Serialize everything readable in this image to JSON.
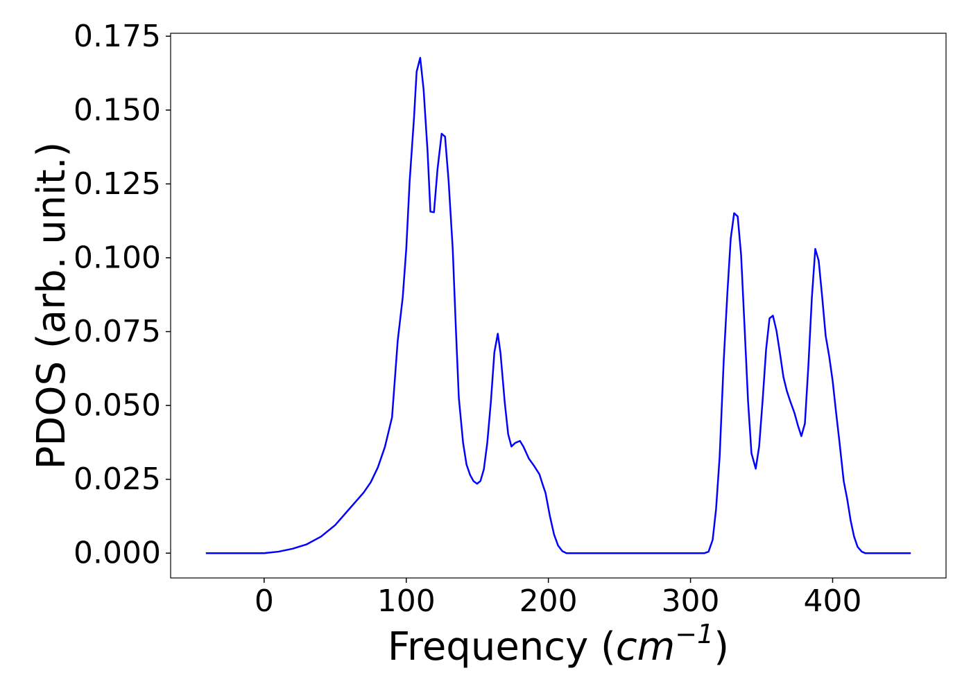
{
  "chart_data": {
    "type": "line",
    "ylabel": "PDOS (arb. unit.)",
    "xlabel": [
      "Frequency (",
      "cm",
      "−1",
      ")"
    ],
    "xlim": [
      -65.8,
      479.8
    ],
    "ylim": [
      -0.0084,
      0.176
    ],
    "xticks": [
      0,
      100,
      200,
      300,
      400
    ],
    "yticks": [
      {
        "value": 0,
        "label": "0.000"
      },
      {
        "value": 0.025,
        "label": "0.025"
      },
      {
        "value": 0.05,
        "label": "0.050"
      },
      {
        "value": 0.075,
        "label": "0.075"
      },
      {
        "value": 0.1,
        "label": "0.100"
      },
      {
        "value": 0.125,
        "label": "0.125"
      },
      {
        "value": 0.15,
        "label": "0.150"
      },
      {
        "value": 0.175,
        "label": "0.175"
      }
    ],
    "grid": false,
    "x": [
      -41,
      0,
      10,
      20,
      30,
      40,
      50,
      60,
      70,
      75,
      80,
      85,
      90,
      94,
      97.5,
      100,
      102.4,
      105.4,
      107.3,
      109.8,
      112.2,
      115,
      117,
      119.5,
      122,
      124.9,
      127.3,
      129.8,
      132.7,
      135,
      137,
      140,
      142.4,
      144.9,
      147.3,
      149.8,
      152.2,
      154.6,
      157,
      159.5,
      162,
      164.4,
      166.3,
      169.3,
      171.7,
      174,
      176.6,
      180,
      182.4,
      186.3,
      190,
      193.7,
      196,
      198,
      201,
      204,
      206.8,
      209.8,
      212.7,
      309.8,
      312.7,
      315.6,
      318,
      320.5,
      323.4,
      325.9,
      328.3,
      330.7,
      333.2,
      335.6,
      338,
      340.5,
      342.9,
      345.9,
      348.3,
      350.7,
      353.2,
      355.6,
      358,
      360.5,
      362.9,
      365.4,
      367.8,
      370.2,
      373.2,
      375.6,
      378,
      380.5,
      382.9,
      385.4,
      387.8,
      390.2,
      392.7,
      395.1,
      397.6,
      400,
      402.4,
      404.9,
      407.8,
      410.2,
      412.7,
      415.1,
      417.6,
      420.5,
      422.9,
      455
    ],
    "series": [
      {
        "name": "PDOS",
        "color": "#0000ff",
        "values": [
          0,
          0,
          0.0005,
          0.0015,
          0.003,
          0.0056,
          0.0095,
          0.015,
          0.0205,
          0.024,
          0.029,
          0.036,
          0.046,
          0.072,
          0.0865,
          0.103,
          0.126,
          0.147,
          0.163,
          0.1677,
          0.157,
          0.136,
          0.1156,
          0.1154,
          0.13,
          0.142,
          0.141,
          0.126,
          0.103,
          0.075,
          0.0525,
          0.0373,
          0.03,
          0.0265,
          0.0244,
          0.0235,
          0.0244,
          0.0284,
          0.0373,
          0.051,
          0.068,
          0.0743,
          0.0678,
          0.051,
          0.0403,
          0.0361,
          0.0373,
          0.038,
          0.0361,
          0.032,
          0.0295,
          0.0267,
          0.0232,
          0.0204,
          0.0127,
          0.0063,
          0.0026,
          0.0007,
          0,
          0,
          0.0005,
          0.0045,
          0.015,
          0.0326,
          0.0654,
          0.0877,
          0.1065,
          0.1151,
          0.114,
          0.101,
          0.077,
          0.0514,
          0.0338,
          0.0286,
          0.0361,
          0.0514,
          0.069,
          0.0795,
          0.0804,
          0.0753,
          0.0678,
          0.0596,
          0.0549,
          0.0514,
          0.0474,
          0.0432,
          0.0396,
          0.0439,
          0.0631,
          0.0865,
          0.103,
          0.099,
          0.0865,
          0.0736,
          0.0666,
          0.0584,
          0.0478,
          0.0373,
          0.0244,
          0.0185,
          0.011,
          0.0056,
          0.0021,
          0.0005,
          0,
          0
        ]
      }
    ]
  }
}
